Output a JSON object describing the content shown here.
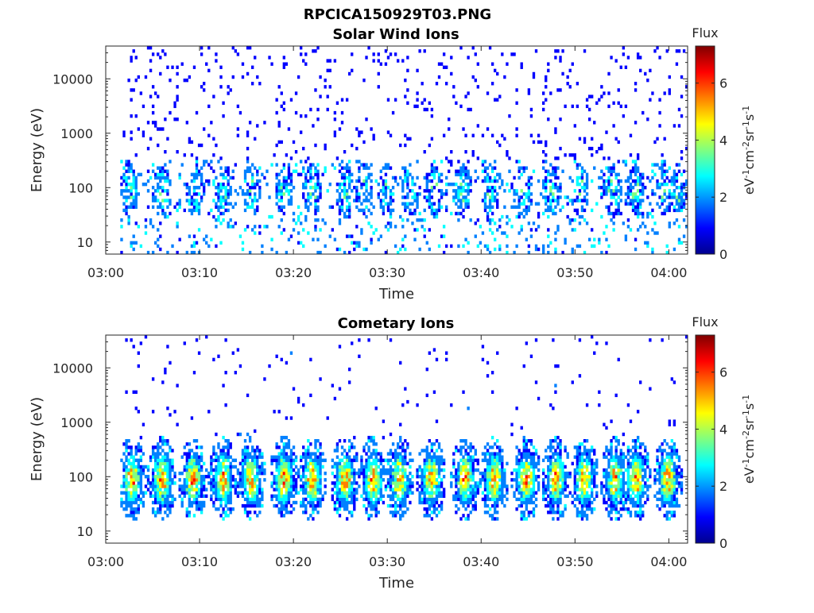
{
  "figure_title": "RPCICA150929T03.PNG",
  "colormap": [
    "#00008f",
    "#0000ff",
    "#0080ff",
    "#00ffff",
    "#80ff80",
    "#ffff00",
    "#ff8000",
    "#ff0000",
    "#800000"
  ],
  "chart_data": [
    {
      "type": "heatmap",
      "title": "Solar Wind Ions",
      "xlabel": "Time",
      "ylabel": "Energy (eV)",
      "x_ticks": [
        "03:00",
        "03:10",
        "03:20",
        "03:30",
        "03:40",
        "03:50",
        "04:00"
      ],
      "x_range_minutes": [
        0,
        62
      ],
      "y_scale": "log",
      "y_ticks": [
        "10",
        "100",
        "1000",
        "10000"
      ],
      "ylim": [
        6,
        40000
      ],
      "colorbar": {
        "title": "Flux",
        "label": "eV-1cm-2sr-1s-1",
        "range": [
          0,
          7.3
        ],
        "ticks": [
          "0",
          "2",
          "4",
          "6"
        ]
      },
      "bursts_minutes": [
        2.5,
        6,
        9.5,
        12.5,
        15.5,
        19,
        22,
        25.5,
        27.5,
        30,
        32.5,
        35,
        38,
        41,
        44.5,
        47.5,
        50.5,
        54,
        56.5,
        59.5,
        61
      ],
      "peak_flux": 3.0,
      "peak_energy_eV": 90
    },
    {
      "type": "heatmap",
      "title": "Cometary Ions",
      "xlabel": "Time",
      "ylabel": "Energy (eV)",
      "x_ticks": [
        "03:00",
        "03:10",
        "03:20",
        "03:30",
        "03:40",
        "03:50",
        "04:00"
      ],
      "x_range_minutes": [
        0,
        62
      ],
      "y_scale": "log",
      "y_ticks": [
        "10",
        "100",
        "1000",
        "10000"
      ],
      "ylim": [
        6,
        40000
      ],
      "colorbar": {
        "title": "Flux",
        "label": "eV-1cm-2sr-1s-1",
        "range": [
          0,
          7.3
        ],
        "ticks": [
          "0",
          "2",
          "4",
          "6"
        ]
      },
      "bursts_minutes": [
        2.8,
        6,
        9.3,
        12.5,
        15.5,
        19,
        22,
        25.5,
        28.5,
        31.3,
        34.7,
        38.3,
        41.4,
        44.8,
        48,
        51,
        54.3,
        56.5,
        59.9
      ],
      "peak_flux": 6.0,
      "peak_energy_eV": 90
    }
  ]
}
